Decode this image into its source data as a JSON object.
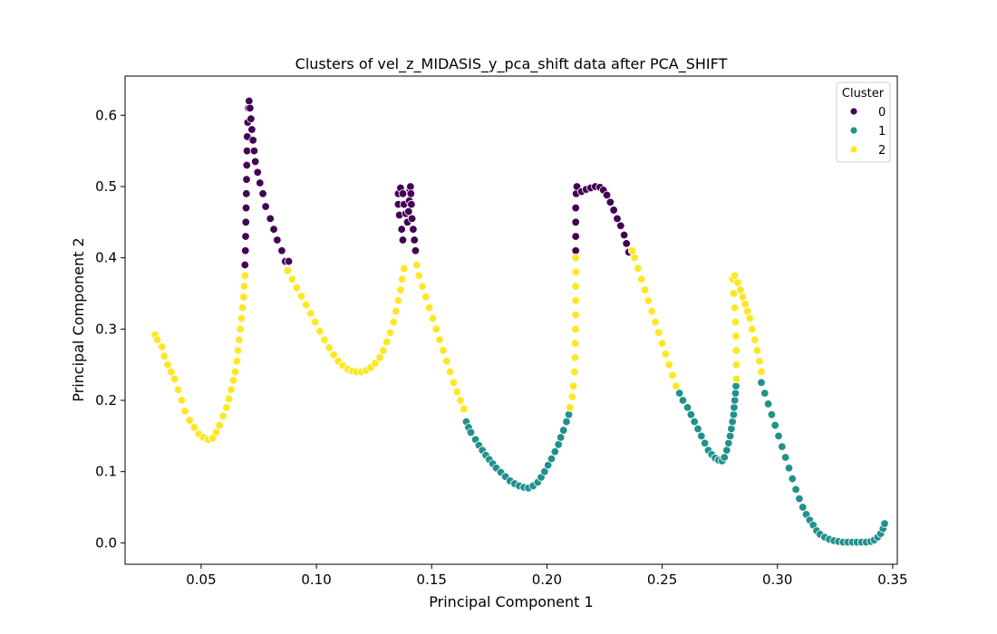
{
  "chart_data": {
    "type": "scatter",
    "title": "Clusters of vel_z_MIDASIS_y_pca_shift data after PCA_SHIFT",
    "xlabel": "Principal Component 1",
    "ylabel": "Principal Component 2",
    "xlim": [
      0.017,
      0.352
    ],
    "ylim": [
      -0.03,
      0.655
    ],
    "xticks": [
      0.05,
      0.1,
      0.15,
      0.2,
      0.25,
      0.3,
      0.35
    ],
    "xtick_labels": [
      "0.05",
      "0.10",
      "0.15",
      "0.20",
      "0.25",
      "0.30",
      "0.35"
    ],
    "yticks": [
      0.0,
      0.1,
      0.2,
      0.3,
      0.4,
      0.5,
      0.6
    ],
    "ytick_labels": [
      "0.0",
      "0.1",
      "0.2",
      "0.3",
      "0.4",
      "0.5",
      "0.6"
    ],
    "grid": false,
    "legend": {
      "title": "Cluster",
      "placement": "top-right"
    },
    "series": [
      {
        "name": "0",
        "color": "#440154",
        "points": [
          [
            0.069,
            0.39
          ],
          [
            0.0692,
            0.41
          ],
          [
            0.0693,
            0.43
          ],
          [
            0.0694,
            0.45
          ],
          [
            0.0695,
            0.47
          ],
          [
            0.0696,
            0.49
          ],
          [
            0.0697,
            0.51
          ],
          [
            0.0698,
            0.53
          ],
          [
            0.0699,
            0.55
          ],
          [
            0.07,
            0.57
          ],
          [
            0.0702,
            0.59
          ],
          [
            0.0705,
            0.61
          ],
          [
            0.0708,
            0.62
          ],
          [
            0.0712,
            0.61
          ],
          [
            0.0716,
            0.595
          ],
          [
            0.072,
            0.58
          ],
          [
            0.0725,
            0.565
          ],
          [
            0.073,
            0.55
          ],
          [
            0.0735,
            0.535
          ],
          [
            0.0745,
            0.52
          ],
          [
            0.0755,
            0.505
          ],
          [
            0.0768,
            0.49
          ],
          [
            0.078,
            0.472
          ],
          [
            0.08,
            0.455
          ],
          [
            0.0815,
            0.44
          ],
          [
            0.083,
            0.425
          ],
          [
            0.085,
            0.41
          ],
          [
            0.0865,
            0.395
          ],
          [
            0.088,
            0.395
          ],
          [
            0.1375,
            0.425
          ],
          [
            0.137,
            0.44
          ],
          [
            0.136,
            0.46
          ],
          [
            0.1355,
            0.475
          ],
          [
            0.1355,
            0.49
          ],
          [
            0.1365,
            0.498
          ],
          [
            0.1375,
            0.49
          ],
          [
            0.138,
            0.475
          ],
          [
            0.1388,
            0.462
          ],
          [
            0.1395,
            0.45
          ],
          [
            0.14,
            0.465
          ],
          [
            0.1403,
            0.48
          ],
          [
            0.1406,
            0.495
          ],
          [
            0.1408,
            0.5
          ],
          [
            0.141,
            0.49
          ],
          [
            0.1412,
            0.475
          ],
          [
            0.1415,
            0.455
          ],
          [
            0.142,
            0.44
          ],
          [
            0.1425,
            0.425
          ],
          [
            0.143,
            0.41
          ],
          [
            0.2125,
            0.41
          ],
          [
            0.2125,
            0.43
          ],
          [
            0.2125,
            0.45
          ],
          [
            0.2125,
            0.47
          ],
          [
            0.2127,
            0.49
          ],
          [
            0.213,
            0.5
          ],
          [
            0.215,
            0.493
          ],
          [
            0.217,
            0.496
          ],
          [
            0.219,
            0.498
          ],
          [
            0.221,
            0.5
          ],
          [
            0.223,
            0.499
          ],
          [
            0.2245,
            0.495
          ],
          [
            0.226,
            0.488
          ],
          [
            0.2275,
            0.478
          ],
          [
            0.229,
            0.467
          ],
          [
            0.2305,
            0.455
          ],
          [
            0.232,
            0.445
          ],
          [
            0.2335,
            0.432
          ],
          [
            0.2345,
            0.42
          ],
          [
            0.2355,
            0.408
          ]
        ]
      },
      {
        "name": "1",
        "color": "#21918c",
        "points": [
          [
            0.165,
            0.17
          ],
          [
            0.166,
            0.162
          ],
          [
            0.167,
            0.155
          ],
          [
            0.169,
            0.145
          ],
          [
            0.1705,
            0.137
          ],
          [
            0.172,
            0.13
          ],
          [
            0.1735,
            0.123
          ],
          [
            0.175,
            0.117
          ],
          [
            0.1765,
            0.111
          ],
          [
            0.178,
            0.105
          ],
          [
            0.18,
            0.099
          ],
          [
            0.182,
            0.093
          ],
          [
            0.184,
            0.087
          ],
          [
            0.186,
            0.083
          ],
          [
            0.188,
            0.08
          ],
          [
            0.19,
            0.078
          ],
          [
            0.192,
            0.077
          ],
          [
            0.194,
            0.08
          ],
          [
            0.196,
            0.085
          ],
          [
            0.1975,
            0.092
          ],
          [
            0.199,
            0.1
          ],
          [
            0.2005,
            0.109
          ],
          [
            0.202,
            0.118
          ],
          [
            0.2035,
            0.128
          ],
          [
            0.205,
            0.138
          ],
          [
            0.206,
            0.148
          ],
          [
            0.2072,
            0.158
          ],
          [
            0.2085,
            0.17
          ],
          [
            0.2095,
            0.18
          ],
          [
            0.2575,
            0.21
          ],
          [
            0.259,
            0.2
          ],
          [
            0.261,
            0.19
          ],
          [
            0.2625,
            0.18
          ],
          [
            0.264,
            0.17
          ],
          [
            0.2655,
            0.16
          ],
          [
            0.267,
            0.15
          ],
          [
            0.2685,
            0.14
          ],
          [
            0.27,
            0.13
          ],
          [
            0.2715,
            0.124
          ],
          [
            0.273,
            0.119
          ],
          [
            0.2745,
            0.116
          ],
          [
            0.276,
            0.115
          ],
          [
            0.277,
            0.12
          ],
          [
            0.278,
            0.13
          ],
          [
            0.2788,
            0.14
          ],
          [
            0.2795,
            0.15
          ],
          [
            0.28,
            0.16
          ],
          [
            0.2805,
            0.17
          ],
          [
            0.281,
            0.18
          ],
          [
            0.2812,
            0.19
          ],
          [
            0.2815,
            0.2
          ],
          [
            0.2818,
            0.21
          ],
          [
            0.282,
            0.22
          ],
          [
            0.293,
            0.225
          ],
          [
            0.2945,
            0.21
          ],
          [
            0.296,
            0.195
          ],
          [
            0.2975,
            0.18
          ],
          [
            0.299,
            0.165
          ],
          [
            0.3005,
            0.15
          ],
          [
            0.302,
            0.135
          ],
          [
            0.3035,
            0.12
          ],
          [
            0.305,
            0.105
          ],
          [
            0.3065,
            0.09
          ],
          [
            0.308,
            0.075
          ],
          [
            0.3095,
            0.062
          ],
          [
            0.311,
            0.05
          ],
          [
            0.3125,
            0.04
          ],
          [
            0.314,
            0.032
          ],
          [
            0.3155,
            0.025
          ],
          [
            0.317,
            0.017
          ],
          [
            0.3185,
            0.012
          ],
          [
            0.3205,
            0.008
          ],
          [
            0.3225,
            0.005
          ],
          [
            0.3245,
            0.003
          ],
          [
            0.3265,
            0.002
          ],
          [
            0.3285,
            0.001
          ],
          [
            0.3305,
            0.001
          ],
          [
            0.3325,
            0.001
          ],
          [
            0.3345,
            0.001
          ],
          [
            0.3365,
            0.001
          ],
          [
            0.3385,
            0.001
          ],
          [
            0.3405,
            0.002
          ],
          [
            0.342,
            0.004
          ],
          [
            0.3435,
            0.008
          ],
          [
            0.3448,
            0.013
          ],
          [
            0.3458,
            0.02
          ],
          [
            0.3465,
            0.027
          ]
        ]
      },
      {
        "name": "2",
        "color": "#fde725",
        "points": [
          [
            0.03,
            0.292
          ],
          [
            0.031,
            0.285
          ],
          [
            0.033,
            0.275
          ],
          [
            0.034,
            0.262
          ],
          [
            0.0355,
            0.25
          ],
          [
            0.037,
            0.24
          ],
          [
            0.0385,
            0.23
          ],
          [
            0.04,
            0.215
          ],
          [
            0.0415,
            0.2
          ],
          [
            0.043,
            0.185
          ],
          [
            0.045,
            0.172
          ],
          [
            0.047,
            0.162
          ],
          [
            0.049,
            0.153
          ],
          [
            0.051,
            0.148
          ],
          [
            0.053,
            0.145
          ],
          [
            0.055,
            0.147
          ],
          [
            0.0565,
            0.155
          ],
          [
            0.058,
            0.165
          ],
          [
            0.0595,
            0.178
          ],
          [
            0.061,
            0.19
          ],
          [
            0.062,
            0.202
          ],
          [
            0.063,
            0.215
          ],
          [
            0.064,
            0.228
          ],
          [
            0.0648,
            0.24
          ],
          [
            0.0655,
            0.255
          ],
          [
            0.066,
            0.27
          ],
          [
            0.0665,
            0.285
          ],
          [
            0.067,
            0.3
          ],
          [
            0.0675,
            0.315
          ],
          [
            0.068,
            0.33
          ],
          [
            0.0684,
            0.345
          ],
          [
            0.0687,
            0.36
          ],
          [
            0.069,
            0.375
          ],
          [
            0.0875,
            0.382
          ],
          [
            0.0895,
            0.37
          ],
          [
            0.0915,
            0.358
          ],
          [
            0.0935,
            0.346
          ],
          [
            0.0955,
            0.334
          ],
          [
            0.0975,
            0.322
          ],
          [
            0.0995,
            0.31
          ],
          [
            0.1015,
            0.297
          ],
          [
            0.1035,
            0.285
          ],
          [
            0.1055,
            0.274
          ],
          [
            0.1075,
            0.264
          ],
          [
            0.1095,
            0.255
          ],
          [
            0.1115,
            0.249
          ],
          [
            0.1135,
            0.244
          ],
          [
            0.1155,
            0.241
          ],
          [
            0.1175,
            0.24
          ],
          [
            0.1195,
            0.24
          ],
          [
            0.1215,
            0.242
          ],
          [
            0.1235,
            0.246
          ],
          [
            0.1255,
            0.252
          ],
          [
            0.1275,
            0.26
          ],
          [
            0.129,
            0.27
          ],
          [
            0.1305,
            0.282
          ],
          [
            0.132,
            0.295
          ],
          [
            0.1335,
            0.31
          ],
          [
            0.1345,
            0.325
          ],
          [
            0.1355,
            0.34
          ],
          [
            0.1365,
            0.355
          ],
          [
            0.1372,
            0.37
          ],
          [
            0.138,
            0.385
          ],
          [
            0.1435,
            0.39
          ],
          [
            0.1445,
            0.375
          ],
          [
            0.146,
            0.36
          ],
          [
            0.1475,
            0.345
          ],
          [
            0.149,
            0.33
          ],
          [
            0.1505,
            0.315
          ],
          [
            0.152,
            0.3
          ],
          [
            0.1535,
            0.285
          ],
          [
            0.155,
            0.27
          ],
          [
            0.1565,
            0.255
          ],
          [
            0.158,
            0.24
          ],
          [
            0.1595,
            0.225
          ],
          [
            0.161,
            0.212
          ],
          [
            0.1625,
            0.2
          ],
          [
            0.164,
            0.188
          ],
          [
            0.21,
            0.19
          ],
          [
            0.211,
            0.205
          ],
          [
            0.2115,
            0.22
          ],
          [
            0.212,
            0.24
          ],
          [
            0.2122,
            0.26
          ],
          [
            0.2123,
            0.28
          ],
          [
            0.2124,
            0.3
          ],
          [
            0.2125,
            0.32
          ],
          [
            0.2125,
            0.34
          ],
          [
            0.2125,
            0.36
          ],
          [
            0.2125,
            0.38
          ],
          [
            0.2125,
            0.4
          ],
          [
            0.237,
            0.41
          ],
          [
            0.238,
            0.4
          ],
          [
            0.2395,
            0.385
          ],
          [
            0.241,
            0.37
          ],
          [
            0.2425,
            0.355
          ],
          [
            0.244,
            0.34
          ],
          [
            0.2455,
            0.325
          ],
          [
            0.247,
            0.31
          ],
          [
            0.2485,
            0.295
          ],
          [
            0.25,
            0.28
          ],
          [
            0.2515,
            0.265
          ],
          [
            0.253,
            0.25
          ],
          [
            0.2545,
            0.235
          ],
          [
            0.256,
            0.22
          ],
          [
            0.2822,
            0.23
          ],
          [
            0.2822,
            0.25
          ],
          [
            0.2821,
            0.27
          ],
          [
            0.282,
            0.29
          ],
          [
            0.2818,
            0.31
          ],
          [
            0.2815,
            0.33
          ],
          [
            0.281,
            0.35
          ],
          [
            0.2805,
            0.37
          ],
          [
            0.2815,
            0.375
          ],
          [
            0.2828,
            0.365
          ],
          [
            0.284,
            0.355
          ],
          [
            0.285,
            0.345
          ],
          [
            0.286,
            0.335
          ],
          [
            0.287,
            0.325
          ],
          [
            0.288,
            0.315
          ],
          [
            0.289,
            0.3
          ],
          [
            0.2902,
            0.285
          ],
          [
            0.2912,
            0.27
          ],
          [
            0.2922,
            0.255
          ],
          [
            0.293,
            0.24
          ]
        ]
      }
    ]
  }
}
